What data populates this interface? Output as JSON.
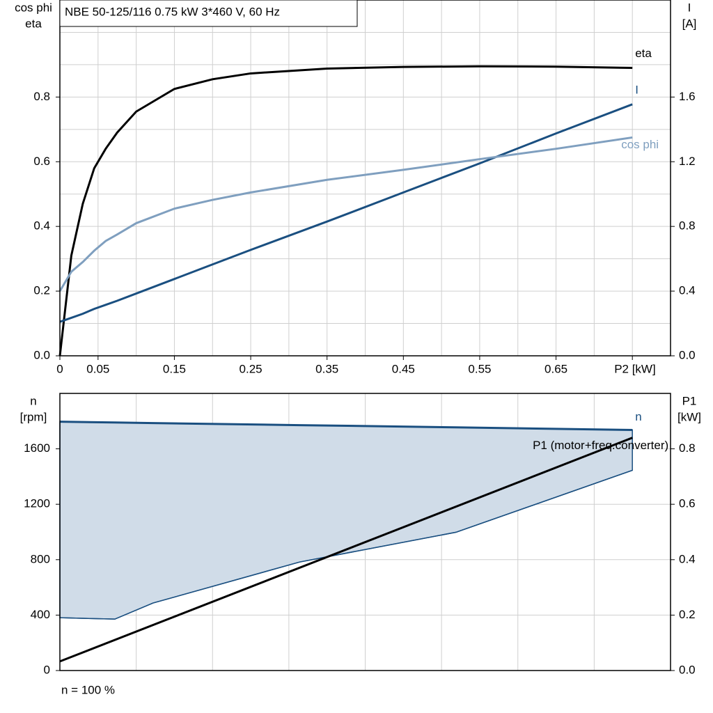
{
  "chart_data": [
    {
      "type": "line",
      "title": "NBE 50-125/116   0.75 kW   3*460 V, 60 Hz",
      "ylabel": [
        "cos phi",
        "eta"
      ],
      "y2label": [
        "I",
        "[A]"
      ],
      "x": [
        0,
        0.015,
        0.03,
        0.045,
        0.06,
        0.075,
        0.1,
        0.15,
        0.2,
        0.25,
        0.35,
        0.45,
        0.55,
        0.65,
        0.75
      ],
      "series": [
        {
          "name": "eta",
          "color": "#000000",
          "values": [
            0,
            0.31,
            0.47,
            0.58,
            0.64,
            0.69,
            0.755,
            0.825,
            0.855,
            0.873,
            0.888,
            0.893,
            0.895,
            0.894,
            0.89
          ]
        },
        {
          "name": "I",
          "color": "#1a4f80",
          "axis": "y2",
          "values": [
            0.21,
            0.235,
            0.26,
            0.29,
            0.315,
            0.34,
            0.385,
            0.475,
            0.565,
            0.655,
            0.83,
            1.01,
            1.19,
            1.375,
            1.555
          ]
        },
        {
          "name": "cos phi",
          "color": "#7f9fbf",
          "values": [
            0.2,
            0.26,
            0.29,
            0.325,
            0.355,
            0.375,
            0.41,
            0.455,
            0.482,
            0.505,
            0.544,
            0.575,
            0.608,
            0.64,
            0.675
          ]
        }
      ],
      "xlim": [
        0,
        0.8
      ],
      "ylim": [
        0,
        1.1
      ],
      "y2lim": [
        0,
        2.2
      ],
      "xticks": [
        0,
        0.05,
        0.15,
        0.25,
        0.35,
        0.45,
        0.55,
        0.65,
        {
          "value": 0.75,
          "label": "P2 [kW]"
        }
      ],
      "xgrid": [
        0.1,
        0.2,
        0.3,
        0.4,
        0.5,
        0.6,
        0.7
      ],
      "yticks": [
        {
          "value": 0,
          "label": "0.0"
        },
        0.2,
        0.4,
        0.6,
        0.8
      ],
      "ygrid": [
        0.1,
        0.3,
        0.5,
        0.7,
        0.9,
        1.0
      ],
      "y2ticks": [
        {
          "value": 0,
          "label": "0.0"
        },
        0.4,
        0.8,
        1.2,
        1.6
      ],
      "grid": true
    },
    {
      "type": "area",
      "ylabel": [
        "n",
        "[rpm]"
      ],
      "y2label": [
        "P1",
        "[kW]"
      ],
      "series": [
        {
          "name": "n",
          "color": "#1a4f80",
          "fill": "#d0dce8",
          "x": [
            0,
            0.072,
            0.122,
            0.314,
            0.519,
            0.75
          ],
          "values": [
            1796,
            1790,
            1786,
            1771,
            1755,
            1736
          ],
          "lower": [
            381,
            371,
            487,
            783,
            998,
            1445
          ]
        },
        {
          "name": "P1 (motor+freq.converter)",
          "color": "#000000",
          "axis": "y2",
          "x": [
            0,
            0.75
          ],
          "values": [
            0.033,
            0.84
          ]
        }
      ],
      "xlim": [
        0,
        0.8
      ],
      "ylim": [
        0,
        2000
      ],
      "y2lim": [
        0,
        1.0
      ],
      "xgrid": [
        0.1,
        0.2,
        0.3,
        0.4,
        0.5,
        0.6,
        0.7
      ],
      "yticks": [
        0,
        400,
        800,
        1200,
        1600
      ],
      "y2ticks": [
        {
          "value": 0,
          "label": "0.0"
        },
        0.2,
        0.4,
        0.6,
        0.8
      ],
      "grid": true
    }
  ],
  "footnote": "n = 100 %"
}
